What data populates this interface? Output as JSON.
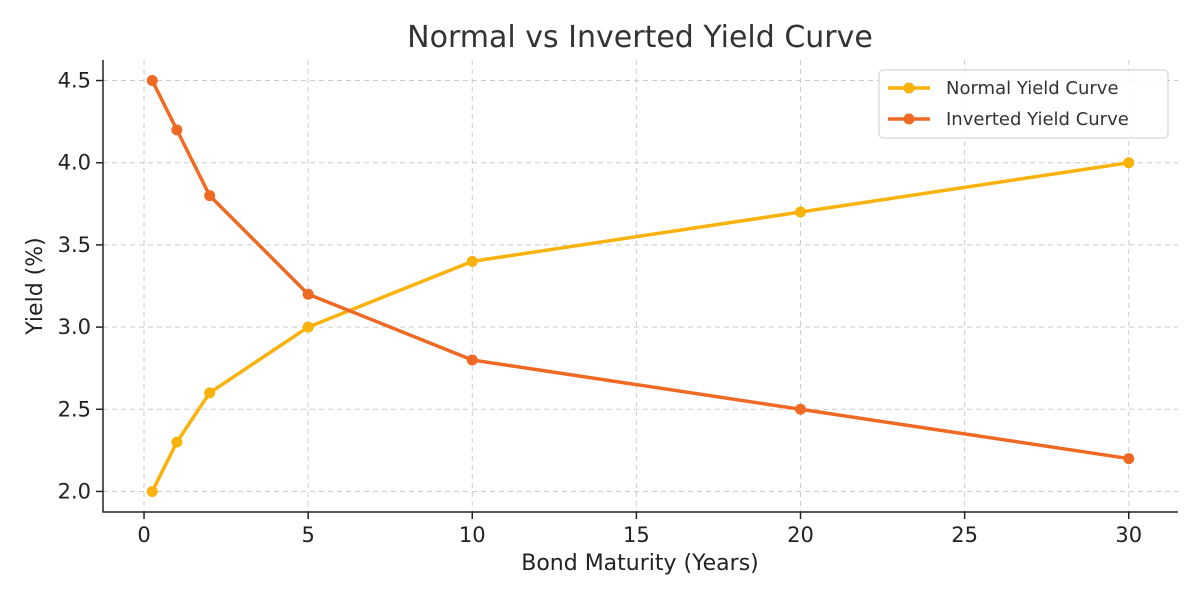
{
  "chart_data": {
    "type": "line",
    "title": "Normal vs Inverted Yield Curve",
    "xlabel": "Bond Maturity (Years)",
    "ylabel": "Yield (%)",
    "x": [
      0.25,
      1,
      2,
      5,
      10,
      20,
      30
    ],
    "xlim": [
      -1.25,
      31.5
    ],
    "ylim": [
      1.875,
      4.625
    ],
    "xticks": [
      0,
      5,
      10,
      15,
      20,
      25,
      30
    ],
    "yticks": [
      2.0,
      2.5,
      3.0,
      3.5,
      4.0,
      4.5
    ],
    "xtick_labels": [
      "0",
      "5",
      "10",
      "15",
      "20",
      "25",
      "30"
    ],
    "ytick_labels": [
      "2.0",
      "2.5",
      "3.0",
      "3.5",
      "4.0",
      "4.5"
    ],
    "grid": true,
    "legend_position": "top-right",
    "series": [
      {
        "name": "Normal Yield Curve",
        "color": "#f9b209",
        "values": [
          2.0,
          2.3,
          2.6,
          3.0,
          3.4,
          3.7,
          4.0
        ]
      },
      {
        "name": "Inverted Yield Curve",
        "color": "#ee6a24",
        "values": [
          4.5,
          4.2,
          3.8,
          3.2,
          2.8,
          2.5,
          2.2
        ]
      }
    ]
  }
}
